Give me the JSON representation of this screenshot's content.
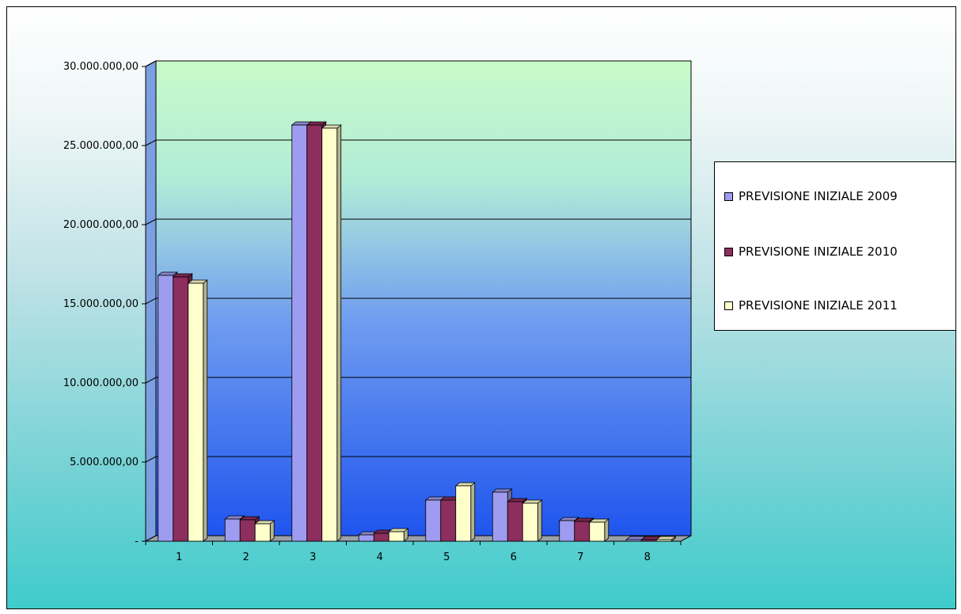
{
  "chart_data": {
    "type": "bar",
    "categories": [
      "1",
      "2",
      "3",
      "4",
      "5",
      "6",
      "7",
      "8"
    ],
    "series": [
      {
        "name": "PREVISIONE INIZIALE 2009",
        "values": [
          16800000,
          1400000,
          26300000,
          400000,
          2600000,
          3100000,
          1300000,
          100000
        ],
        "color": "#9e9cf0"
      },
      {
        "name": "PREVISIONE INIZIALE 2010",
        "values": [
          16700000,
          1350000,
          26300000,
          500000,
          2600000,
          2500000,
          1250000,
          100000
        ],
        "color": "#8c2e5e"
      },
      {
        "name": "PREVISIONE INIZIALE 2011",
        "values": [
          16300000,
          1100000,
          26100000,
          600000,
          3500000,
          2400000,
          1200000,
          100000
        ],
        "color": "#ffffcc"
      }
    ],
    "yticks": [
      "-",
      "5.000.000,00",
      "10.000.000,00",
      "15.000.000,00",
      "20.000.000,00",
      "25.000.000,00",
      "30.000.000,00"
    ],
    "ylim": [
      0,
      30000000
    ],
    "grid": true,
    "legend_position": "right"
  }
}
